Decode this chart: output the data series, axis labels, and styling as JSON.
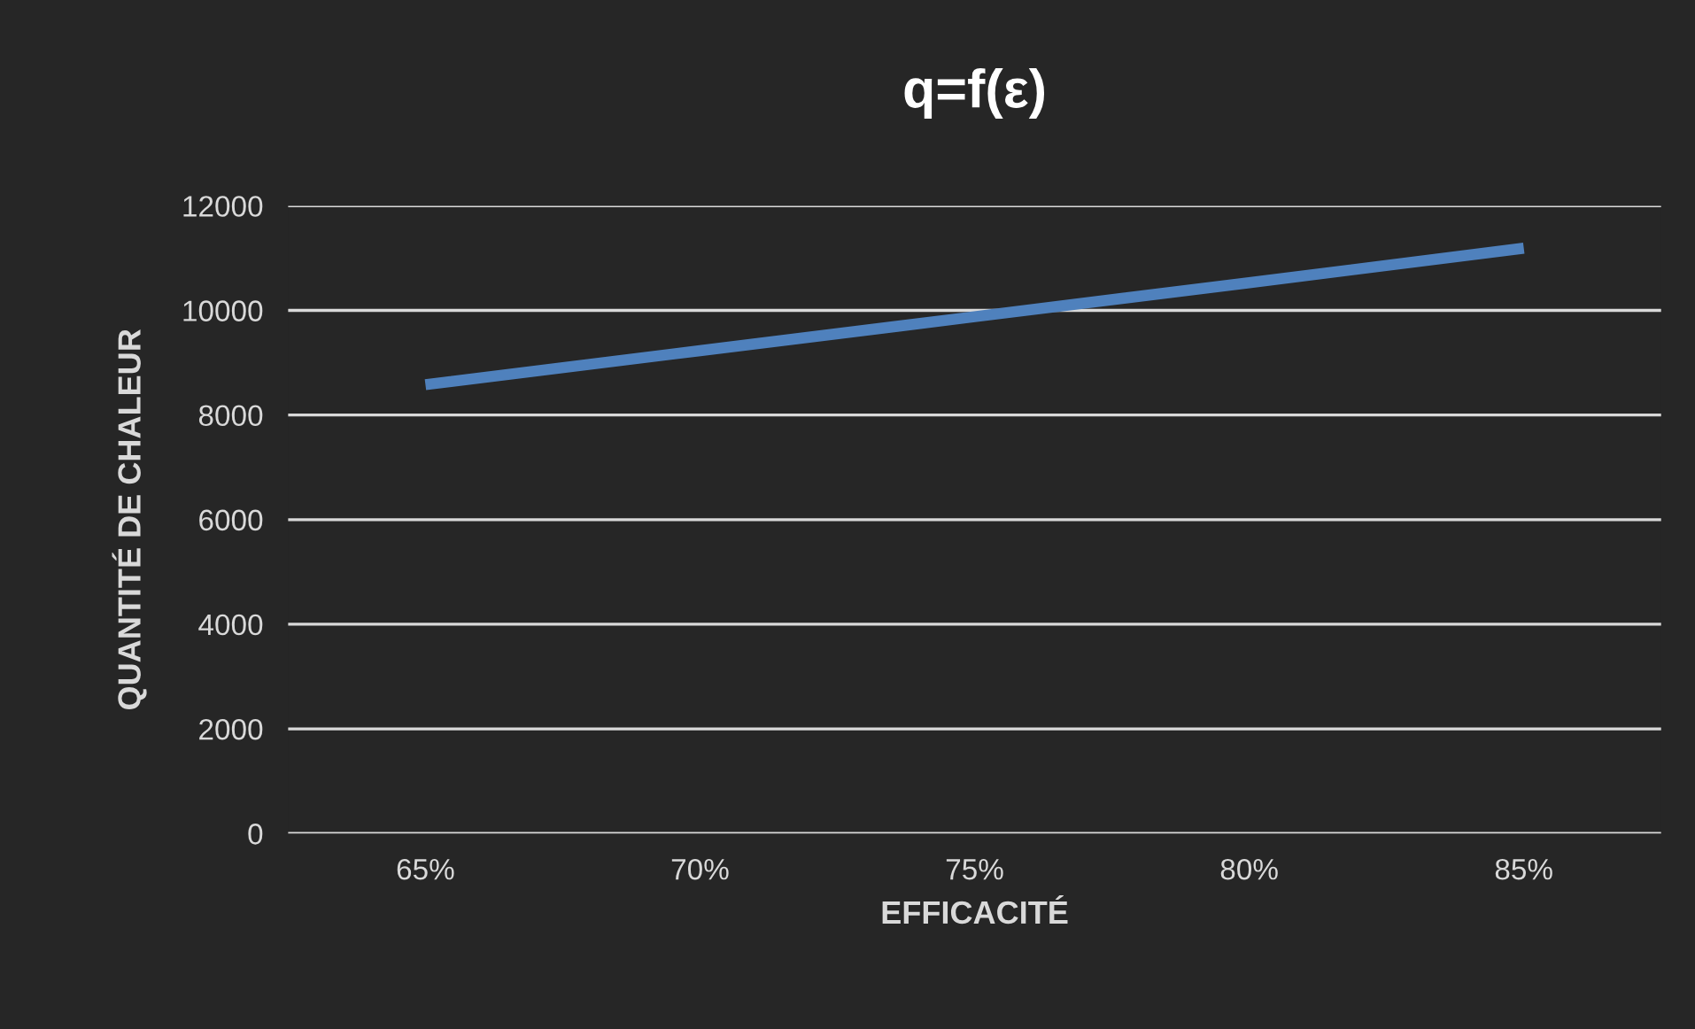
{
  "chart_data": {
    "type": "line",
    "title": "q=f(ε)",
    "xlabel": "EFFICACITÉ",
    "ylabel": "QUANTITÉ DE CHALEUR",
    "categories": [
      "65%",
      "70%",
      "75%",
      "80%",
      "85%"
    ],
    "series": [
      {
        "color": "#4f81bd",
        "values": [
          8580,
          9230,
          9880,
          10530,
          11190
        ]
      }
    ],
    "ylim": [
      0,
      12000
    ],
    "yticks": [
      0,
      2000,
      4000,
      6000,
      8000,
      10000,
      12000
    ],
    "grid": "y",
    "legend": false,
    "marker": "none",
    "line_style": "solid"
  }
}
